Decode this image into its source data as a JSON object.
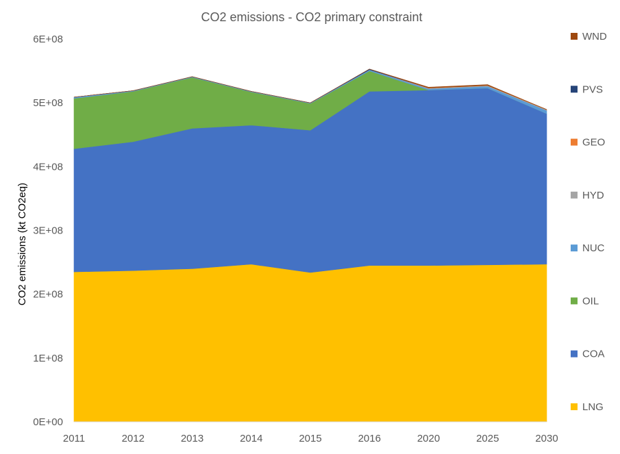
{
  "chart_data": {
    "type": "area",
    "stacked": true,
    "title": "CO2 emissions - CO2 primary constraint",
    "xlabel": "",
    "ylabel": "CO2 emissions (kt CO2eq)",
    "ylim": [
      0,
      600000000
    ],
    "yticks": [
      0,
      100000000,
      200000000,
      300000000,
      400000000,
      500000000,
      600000000
    ],
    "ytick_labels": [
      "0E+00",
      "1E+08",
      "2E+08",
      "3E+08",
      "4E+08",
      "5E+08",
      "6E+08"
    ],
    "categories": [
      "2011",
      "2012",
      "2013",
      "2014",
      "2015",
      "2016",
      "2020",
      "2025",
      "2030"
    ],
    "grid": false,
    "legend_position": "right",
    "series": [
      {
        "name": "LNG",
        "color": "#FFC000",
        "values": [
          235000000,
          237000000,
          240000000,
          247000000,
          234000000,
          245000000,
          245000000,
          246000000,
          247000000
        ]
      },
      {
        "name": "COA",
        "color": "#4472C4",
        "values": [
          193000000,
          202000000,
          220000000,
          218000000,
          223000000,
          273000000,
          275000000,
          277000000,
          236000000
        ]
      },
      {
        "name": "OIL",
        "color": "#70AD47",
        "values": [
          79000000,
          79000000,
          80000000,
          52000000,
          42000000,
          32000000,
          0,
          0,
          0
        ]
      },
      {
        "name": "NUC",
        "color": "#5B9BD5",
        "values": [
          2000000,
          1000000,
          1000000,
          1000000,
          1000000,
          2000000,
          2000000,
          3000000,
          5000000
        ]
      },
      {
        "name": "HYD",
        "color": "#A5A5A5",
        "values": [
          0,
          0,
          0,
          0,
          0,
          0,
          1000000,
          1000000,
          1000000
        ]
      },
      {
        "name": "GEO",
        "color": "#ED7D31",
        "values": [
          0,
          0,
          0,
          0,
          0,
          0,
          500000,
          500000,
          500000
        ]
      },
      {
        "name": "PVS",
        "color": "#264478",
        "values": [
          0,
          0,
          0,
          0,
          0,
          1000000,
          0,
          0,
          0
        ]
      },
      {
        "name": "WND",
        "color": "#9E480E",
        "values": [
          0,
          0,
          0,
          0,
          0,
          0,
          1000000,
          1000000,
          0
        ]
      }
    ]
  }
}
